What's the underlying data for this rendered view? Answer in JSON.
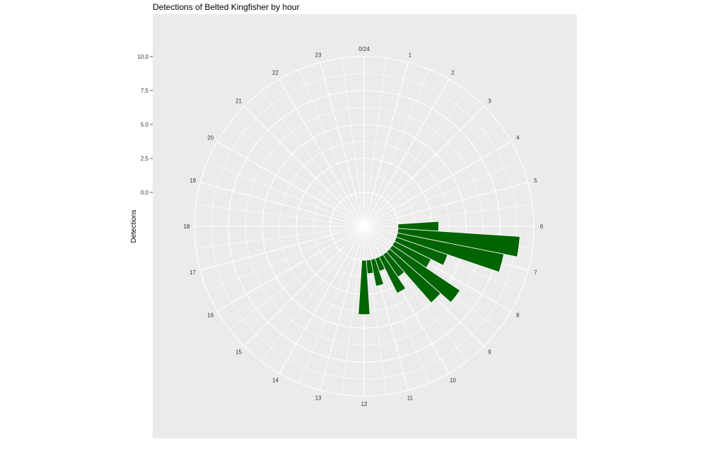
{
  "chart_data": {
    "type": "bar",
    "coord": "polar",
    "title": "Detections of Belted Kingfisher by hour",
    "xlabel": "",
    "ylabel": "Detections",
    "ylim": [
      -2.5,
      10.0
    ],
    "yticks": [
      0.0,
      2.5,
      5.0,
      7.5,
      10.0
    ],
    "ytick_labels": [
      "0.0",
      "2.5",
      "5.0",
      "7.5",
      "10.0"
    ],
    "hour_labels": [
      "0/24",
      "1",
      "2",
      "3",
      "4",
      "5",
      "6",
      "7",
      "8",
      "9",
      "10",
      "11",
      "12",
      "13",
      "14",
      "15",
      "16",
      "17",
      "18",
      "19",
      "20",
      "21",
      "22",
      "23"
    ],
    "bar_color": "#006400",
    "panel_color": "#ebebeb",
    "grid": true,
    "bars": [
      {
        "hour": 6.0,
        "value": 3
      },
      {
        "hour": 6.5,
        "value": 9
      },
      {
        "hour": 7.0,
        "value": 8
      },
      {
        "hour": 7.5,
        "value": 4
      },
      {
        "hour": 8.0,
        "value": 3
      },
      {
        "hour": 8.5,
        "value": 6
      },
      {
        "hour": 9.0,
        "value": 5
      },
      {
        "hour": 9.5,
        "value": 2
      },
      {
        "hour": 10.0,
        "value": 3
      },
      {
        "hour": 10.5,
        "value": 1
      },
      {
        "hour": 11.0,
        "value": 2
      },
      {
        "hour": 11.5,
        "value": 1
      },
      {
        "hour": 12.0,
        "value": 4
      }
    ]
  }
}
